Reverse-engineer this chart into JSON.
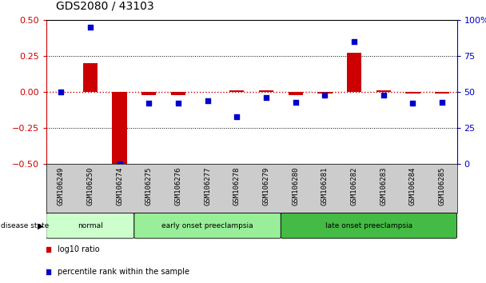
{
  "title": "GDS2080 / 43103",
  "samples": [
    "GSM106249",
    "GSM106250",
    "GSM106274",
    "GSM106275",
    "GSM106276",
    "GSM106277",
    "GSM106278",
    "GSM106279",
    "GSM106280",
    "GSM106281",
    "GSM106282",
    "GSM106283",
    "GSM106284",
    "GSM106285"
  ],
  "log10_ratio": [
    0.0,
    0.2,
    -0.5,
    -0.02,
    -0.02,
    0.0,
    0.01,
    0.01,
    -0.02,
    -0.01,
    0.27,
    0.01,
    -0.01,
    -0.01
  ],
  "percentile_rank": [
    50,
    95,
    0,
    42,
    42,
    44,
    33,
    46,
    43,
    48,
    85,
    48,
    42,
    43
  ],
  "groups": [
    {
      "label": "normal",
      "start": 0,
      "end": 3,
      "color": "#ccffcc"
    },
    {
      "label": "early onset preeclampsia",
      "start": 3,
      "end": 8,
      "color": "#99ee99"
    },
    {
      "label": "late onset preeclampsia",
      "start": 8,
      "end": 14,
      "color": "#44bb44"
    }
  ],
  "ylim_left": [
    -0.5,
    0.5
  ],
  "ylim_right": [
    0,
    100
  ],
  "yticks_left": [
    -0.5,
    -0.25,
    0.0,
    0.25,
    0.5
  ],
  "yticks_right": [
    0,
    25,
    50,
    75,
    100
  ],
  "bar_color": "#cc0000",
  "dot_color": "#0000cc",
  "bg_color": "#ffffff",
  "tick_label_fontsize": 6.5,
  "title_fontsize": 10,
  "legend_log10_color": "#cc0000",
  "legend_pct_color": "#0000cc",
  "label_area_color": "#cccccc"
}
